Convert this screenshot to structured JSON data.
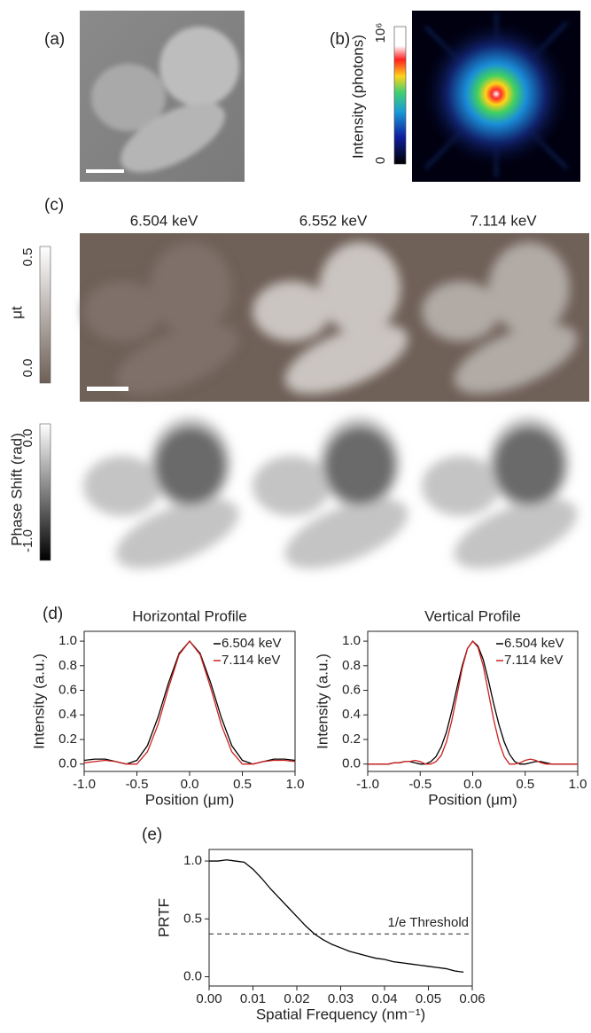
{
  "panels": {
    "a": "(a)",
    "b": "(b)",
    "c": "(c)",
    "d": "(d)",
    "e": "(e)"
  },
  "energies": [
    "6.504 keV",
    "6.552 keV",
    "7.114 keV"
  ],
  "colorbar_b": {
    "label": "Intensity (photons)",
    "ticks": [
      0,
      {
        "value": 1000000,
        "label": "10⁶"
      }
    ]
  },
  "colorbar_mut": {
    "label": "μt",
    "ticks": [
      {
        "value": 0,
        "label": "0.0"
      },
      0.5
    ]
  },
  "colorbar_phase": {
    "label": "Phase Shift (rad)",
    "ticks": [
      {
        "value": -1,
        "label": "-1.0"
      },
      {
        "value": 0,
        "label": "0.0"
      }
    ]
  },
  "chart_data": [
    {
      "type": "line",
      "title": "Horizontal Profile",
      "x_label": "Position (μm)",
      "y_label": "Intensity (a.u.)",
      "x": [
        -1,
        -0.9,
        -0.8,
        -0.7,
        -0.6,
        -0.5,
        -0.4,
        -0.3,
        -0.2,
        -0.1,
        0,
        0.1,
        0.2,
        0.3,
        0.4,
        0.5,
        0.6,
        0.7,
        0.8,
        0.9,
        1
      ],
      "series": [
        {
          "name": "6.504 keV",
          "color": "#000000",
          "values": [
            0.03,
            0.04,
            0.04,
            0.02,
            0.0,
            0.03,
            0.15,
            0.38,
            0.66,
            0.9,
            1.0,
            0.9,
            0.66,
            0.38,
            0.15,
            0.03,
            0.0,
            0.02,
            0.04,
            0.04,
            0.03
          ]
        },
        {
          "name": "7.114 keV",
          "color": "#cc1f1f",
          "values": [
            0.01,
            0.02,
            0.03,
            0.02,
            0.0,
            0.0,
            0.1,
            0.32,
            0.62,
            0.89,
            1.0,
            0.89,
            0.62,
            0.32,
            0.1,
            0.0,
            0.0,
            0.02,
            0.03,
            0.03,
            0.02
          ]
        }
      ],
      "xlim": [
        -1,
        1
      ],
      "ylim": [
        -0.06,
        1.08
      ],
      "xticks": [
        {
          "value": -1,
          "label": "-1.0"
        },
        -0.5,
        {
          "value": 0,
          "label": "0.0"
        },
        0.5,
        {
          "value": 1,
          "label": "1.0"
        }
      ],
      "yticks": [
        {
          "value": 0,
          "label": "0.0"
        },
        0.2,
        0.4,
        0.6,
        0.8,
        {
          "value": 1,
          "label": "1.0"
        }
      ],
      "legend": "upper right"
    },
    {
      "type": "line",
      "title": "Vertical Profile",
      "x_label": "Position (μm)",
      "y_label": "Intensity (a.u.)",
      "x": [
        -1,
        -0.95,
        -0.9,
        -0.85,
        -0.8,
        -0.75,
        -0.7,
        -0.65,
        -0.6,
        -0.55,
        -0.5,
        -0.45,
        -0.4,
        -0.35,
        -0.3,
        -0.25,
        -0.2,
        -0.15,
        -0.1,
        -0.05,
        0,
        0.05,
        0.1,
        0.15,
        0.2,
        0.25,
        0.3,
        0.35,
        0.4,
        0.45,
        0.5,
        0.55,
        0.6,
        0.65,
        0.7,
        0.75,
        0.8,
        0.85,
        0.9,
        0.95,
        1
      ],
      "series": [
        {
          "name": "6.504 keV",
          "color": "#000000",
          "values": [
            0,
            0,
            0,
            0,
            0,
            0.01,
            0.01,
            0.02,
            0.02,
            0.01,
            0,
            0,
            0.02,
            0.06,
            0.14,
            0.26,
            0.43,
            0.62,
            0.8,
            0.94,
            1.0,
            0.96,
            0.85,
            0.68,
            0.49,
            0.32,
            0.18,
            0.08,
            0.02,
            0,
            0,
            0.01,
            0.02,
            0.02,
            0.01,
            0,
            0,
            0,
            0,
            0,
            0
          ]
        },
        {
          "name": "7.114 keV",
          "color": "#cc1f1f",
          "values": [
            0,
            0,
            0,
            0,
            0,
            0.01,
            0.01,
            0.02,
            0.02,
            0.03,
            0.02,
            0,
            0,
            0.02,
            0.07,
            0.18,
            0.35,
            0.56,
            0.78,
            0.94,
            1.0,
            0.95,
            0.8,
            0.58,
            0.36,
            0.18,
            0.06,
            0,
            0,
            0.01,
            0.03,
            0.04,
            0.03,
            0.01,
            0,
            0,
            0,
            0,
            0,
            0,
            0
          ]
        }
      ],
      "xlim": [
        -1,
        1
      ],
      "ylim": [
        -0.06,
        1.08
      ],
      "xticks": [
        {
          "value": -1,
          "label": "-1.0"
        },
        -0.5,
        {
          "value": 0,
          "label": "0.0"
        },
        0.5,
        {
          "value": 1,
          "label": "1.0"
        }
      ],
      "yticks": [
        {
          "value": 0,
          "label": "0.0"
        },
        0.2,
        0.4,
        0.6,
        0.8,
        {
          "value": 1,
          "label": "1.0"
        }
      ],
      "legend": "upper right"
    },
    {
      "type": "line",
      "x_label": "Spatial Frequency (nm⁻¹)",
      "y_label": "PRTF",
      "x": [
        0,
        0.002,
        0.004,
        0.006,
        0.008,
        0.01,
        0.012,
        0.014,
        0.016,
        0.018,
        0.02,
        0.022,
        0.024,
        0.026,
        0.028,
        0.03,
        0.032,
        0.034,
        0.036,
        0.038,
        0.04,
        0.042,
        0.044,
        0.046,
        0.048,
        0.05,
        0.052,
        0.054,
        0.056,
        0.058
      ],
      "series": [
        {
          "color": "#000000",
          "values": [
            1.0,
            1.0,
            1.01,
            1.0,
            0.99,
            0.93,
            0.85,
            0.76,
            0.68,
            0.6,
            0.52,
            0.44,
            0.37,
            0.32,
            0.28,
            0.25,
            0.22,
            0.2,
            0.18,
            0.16,
            0.15,
            0.13,
            0.12,
            0.11,
            0.1,
            0.09,
            0.08,
            0.07,
            0.05,
            0.04
          ]
        }
      ],
      "xlim": [
        0,
        0.06
      ],
      "ylim": [
        -0.08,
        1.1
      ],
      "xticks": [
        {
          "value": 0,
          "label": "0.00"
        },
        0.01,
        0.02,
        0.03,
        0.04,
        0.05,
        0.06
      ],
      "yticks": [
        {
          "value": 0,
          "label": "0.0"
        },
        0.5,
        {
          "value": 1,
          "label": "1.0"
        }
      ],
      "hline": {
        "value": 0.37,
        "label": "1/e Threshold",
        "style": "dashed"
      }
    }
  ]
}
